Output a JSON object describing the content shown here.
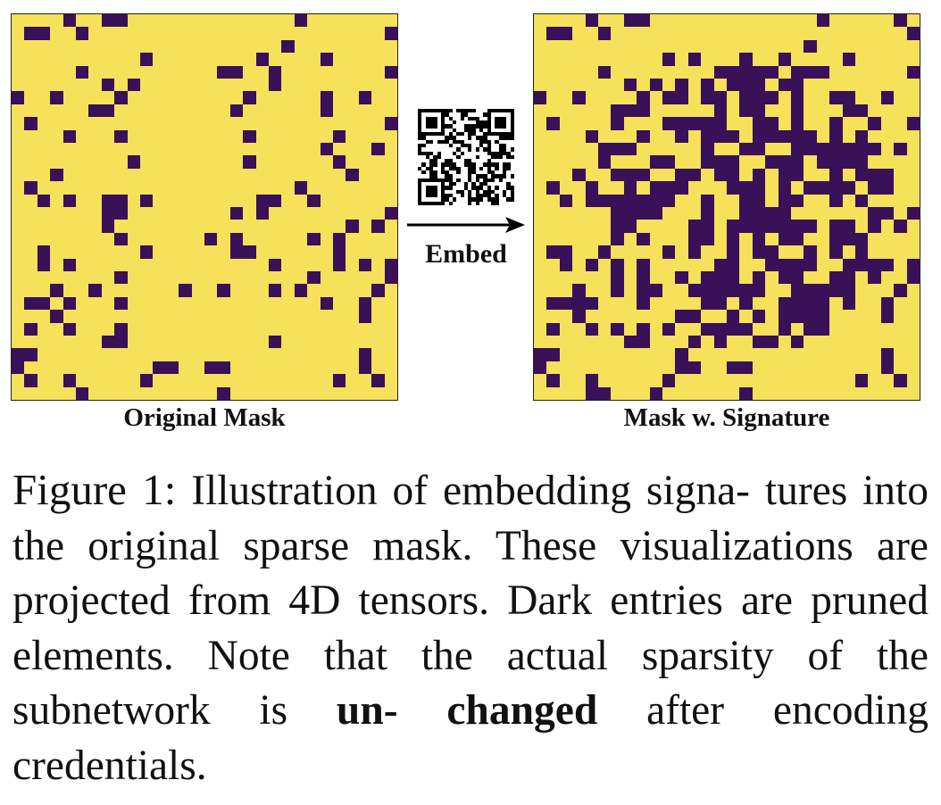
{
  "figure": {
    "left_panel_label": "Original Mask",
    "right_panel_label": "Mask w. Signature",
    "arrow_label": "Embed",
    "mask_colors": {
      "kept": "#f5e15a",
      "pruned": "#3a1058"
    },
    "qr_icon": "qr-code-icon"
  },
  "caption": {
    "label": "Figure 1:",
    "text_1": " Illustration of embedding signa- tures into the original sparse mask.  These visualizations are projected from 4D tensors. Dark entries are pruned elements. Note that the actual sparsity of the subnetwork is ",
    "bold_1": "un- changed",
    "text_2": " after encoding credentials."
  }
}
